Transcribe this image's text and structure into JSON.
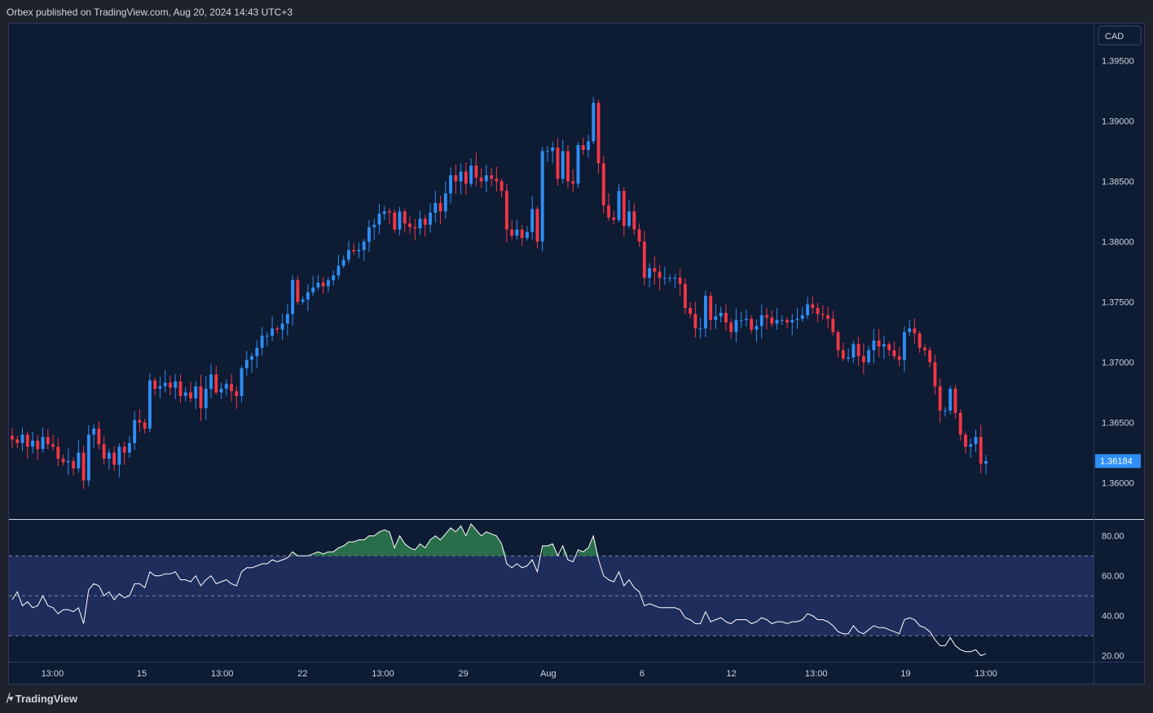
{
  "header": {
    "publisher_text": "Orbex published on TradingView.com, Aug 20, 2024 14:43 UTC+3"
  },
  "footer": {
    "brand_mark": "⧸▾",
    "brand_name": "TradingView"
  },
  "colors": {
    "background": "#0d1b33",
    "up": "#2f8ef4",
    "down": "#f23645",
    "rsi_line": "#ffffff",
    "rsi_band": "#1f2d5c",
    "overbought_fill": "#2e7d4f",
    "price_tag": "#2f8ef4"
  },
  "chart_data": [
    {
      "type": "candlestick",
      "currency_label": "CAD",
      "last_price_label": "1.36184",
      "y_ticks": [
        "1.39500",
        "1.39000",
        "1.38500",
        "1.38000",
        "1.37500",
        "1.37000",
        "1.36500",
        "1.36000"
      ],
      "ylim": [
        1.357,
        1.398
      ],
      "x_ticks": [
        "13:00",
        "15",
        "13:00",
        "22",
        "13:00",
        "29",
        "Aug",
        "6",
        "12",
        "13:00",
        "19",
        "13:00"
      ],
      "close_series": [
        1.3636,
        1.3633,
        1.364,
        1.363,
        1.3635,
        1.3628,
        1.3638,
        1.3632,
        1.363,
        1.362,
        1.3617,
        1.3618,
        1.3612,
        1.3625,
        1.3602,
        1.364,
        1.3645,
        1.3632,
        1.362,
        1.3625,
        1.3615,
        1.363,
        1.3625,
        1.3633,
        1.3652,
        1.365,
        1.3645,
        1.3685,
        1.3678,
        1.368,
        1.3683,
        1.3679,
        1.3684,
        1.3672,
        1.3675,
        1.367,
        1.368,
        1.3662,
        1.3678,
        1.369,
        1.3675,
        1.3678,
        1.3682,
        1.3676,
        1.3672,
        1.3695,
        1.3702,
        1.3705,
        1.3712,
        1.3722,
        1.3722,
        1.3728,
        1.3727,
        1.3732,
        1.374,
        1.3768,
        1.375,
        1.3752,
        1.3758,
        1.3762,
        1.3766,
        1.3763,
        1.3768,
        1.3772,
        1.378,
        1.3785,
        1.3793,
        1.3792,
        1.3793,
        1.38,
        1.3812,
        1.3814,
        1.3823,
        1.3825,
        1.3824,
        1.381,
        1.3825,
        1.3815,
        1.3812,
        1.3811,
        1.3819,
        1.3814,
        1.3824,
        1.3832,
        1.3825,
        1.384,
        1.3855,
        1.385,
        1.3858,
        1.3848,
        1.3863,
        1.3853,
        1.385,
        1.3855,
        1.3852,
        1.385,
        1.3842,
        1.381,
        1.3805,
        1.381,
        1.3803,
        1.3808,
        1.3827,
        1.38,
        1.3875,
        1.3875,
        1.3878,
        1.3852,
        1.3875,
        1.385,
        1.3848,
        1.388,
        1.3876,
        1.3883,
        1.3915,
        1.3865,
        1.383,
        1.382,
        1.3818,
        1.3842,
        1.3813,
        1.3825,
        1.381,
        1.38,
        1.377,
        1.3778,
        1.3775,
        1.377,
        1.377,
        1.377,
        1.377,
        1.3765,
        1.3745,
        1.374,
        1.3728,
        1.3728,
        1.3755,
        1.3735,
        1.3738,
        1.3741,
        1.3733,
        1.3725,
        1.3735,
        1.3735,
        1.3736,
        1.3727,
        1.373,
        1.3739,
        1.3737,
        1.3732,
        1.3735,
        1.3735,
        1.3733,
        1.3735,
        1.3736,
        1.3739,
        1.3748,
        1.3745,
        1.374,
        1.3739,
        1.3736,
        1.3725,
        1.371,
        1.3703,
        1.3704,
        1.3715,
        1.3705,
        1.37,
        1.371,
        1.3718,
        1.3713,
        1.3715,
        1.371,
        1.3705,
        1.3702,
        1.3725,
        1.3728,
        1.3724,
        1.3712,
        1.371,
        1.37,
        1.368,
        1.366,
        1.366,
        1.3678,
        1.3658,
        1.364,
        1.363,
        1.3632,
        1.3638,
        1.3616,
        1.3618
      ]
    },
    {
      "type": "line",
      "indicator": "RSI",
      "y_ticks": [
        "80.00",
        "60.00",
        "40.00",
        "20.00"
      ],
      "ylim": [
        17,
        88
      ],
      "band_levels": [
        70,
        50,
        30
      ],
      "values": [
        48,
        52,
        45,
        47,
        44,
        45,
        50,
        45,
        44,
        41,
        43,
        43,
        42,
        44,
        36,
        53,
        56,
        55,
        50,
        52,
        48,
        51,
        49,
        50,
        56,
        56,
        54,
        62,
        60,
        60,
        61,
        61,
        62,
        58,
        58,
        57,
        60,
        55,
        58,
        60,
        56,
        57,
        58,
        56,
        55,
        62,
        64,
        64,
        65,
        66,
        66,
        68,
        67,
        68,
        69,
        72,
        70,
        70,
        70,
        71,
        72,
        71,
        72,
        72,
        74,
        75,
        77,
        77,
        78,
        78,
        80,
        80,
        82,
        83,
        82,
        74,
        80,
        76,
        74,
        73,
        76,
        74,
        78,
        80,
        78,
        81,
        84,
        82,
        85,
        80,
        86,
        83,
        80,
        82,
        81,
        80,
        76,
        66,
        64,
        66,
        64,
        65,
        68,
        62,
        75,
        75,
        76,
        70,
        75,
        68,
        67,
        73,
        72,
        74,
        80,
        68,
        60,
        58,
        57,
        62,
        55,
        58,
        54,
        52,
        45,
        46,
        45,
        44,
        44,
        44,
        44,
        43,
        39,
        38,
        36,
        36,
        42,
        37,
        38,
        39,
        37,
        36,
        38,
        38,
        38,
        36,
        37,
        39,
        38,
        36,
        37,
        37,
        36,
        37,
        37,
        38,
        41,
        40,
        38,
        38,
        37,
        35,
        32,
        31,
        31,
        35,
        32,
        31,
        33,
        35,
        34,
        34,
        33,
        32,
        31,
        38,
        39,
        38,
        35,
        34,
        32,
        28,
        25,
        25,
        29,
        25,
        23,
        22,
        22,
        23,
        20,
        21
      ]
    }
  ]
}
